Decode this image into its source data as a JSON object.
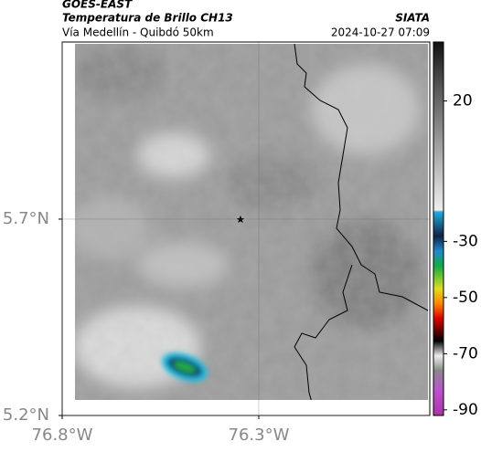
{
  "header": {
    "source": "GOES-EAST",
    "title": "Temperatura de Brillo CH13",
    "agency": "SIATA",
    "subtitle": "Vía Medellín - Quibdó 50km",
    "timestamp": "2024-10-27 07:09"
  },
  "map": {
    "xlim": [
      -76.8,
      -75.865
    ],
    "ylim": [
      5.2,
      6.151
    ],
    "xticks": [
      {
        "value": -76.8,
        "label": "76.8°W"
      },
      {
        "value": -76.3,
        "label": "76.3°W"
      }
    ],
    "yticks": [
      {
        "value": 5.7,
        "label": "5.7°N"
      },
      {
        "value": 5.2,
        "label": "5.2°N"
      }
    ],
    "grid": true
  },
  "colorbar": {
    "lim": [
      -92,
      41
    ],
    "ticks": [
      20,
      -30,
      -50,
      -70,
      -90
    ]
  }
}
